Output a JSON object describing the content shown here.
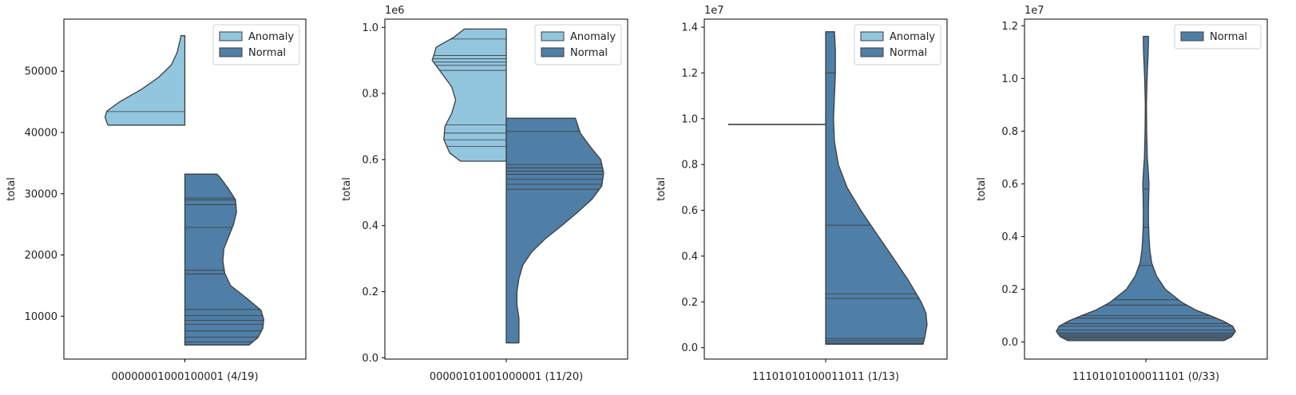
{
  "colors": {
    "anomaly": "#92c6df",
    "normal": "#4f7fa6",
    "edge": "#3d3d3d",
    "quartile_line": "#3a3a3a"
  },
  "chart_data": [
    {
      "type": "violin",
      "split": true,
      "category": "00000001000100001 (4/19)",
      "ylabel": "total",
      "exponent_label": "",
      "yticks": [
        10000,
        20000,
        30000,
        40000,
        50000
      ],
      "ytick_labels": [
        "10000",
        "20000",
        "30000",
        "40000",
        "50000"
      ],
      "ylim": [
        3000,
        58500
      ],
      "legend": {
        "position": "upper right",
        "entries": [
          "Anomaly",
          "Normal"
        ]
      },
      "series": [
        {
          "name": "Anomaly",
          "side": "left",
          "profile": [
            [
              41200,
              0.79
            ],
            [
              41600,
              0.8
            ],
            [
              42500,
              0.82
            ],
            [
              43500,
              0.8
            ],
            [
              45000,
              0.67
            ],
            [
              47000,
              0.45
            ],
            [
              49000,
              0.27
            ],
            [
              51000,
              0.14
            ],
            [
              53000,
              0.08
            ],
            [
              55000,
              0.05
            ],
            [
              55800,
              0.04
            ]
          ],
          "lines": [
            43400
          ]
        },
        {
          "name": "Normal",
          "side": "right",
          "profile": [
            [
              5300,
              0.66
            ],
            [
              6500,
              0.75
            ],
            [
              8000,
              0.8
            ],
            [
              9500,
              0.81
            ],
            [
              11000,
              0.78
            ],
            [
              13000,
              0.63
            ],
            [
              15000,
              0.47
            ],
            [
              17000,
              0.41
            ],
            [
              19000,
              0.39
            ],
            [
              21000,
              0.4
            ],
            [
              23000,
              0.45
            ],
            [
              25000,
              0.5
            ],
            [
              27000,
              0.53
            ],
            [
              29000,
              0.52
            ],
            [
              31000,
              0.44
            ],
            [
              32500,
              0.37
            ],
            [
              33200,
              0.33
            ]
          ],
          "lines": [
            5800,
            6600,
            7600,
            8700,
            9300,
            10100,
            11100,
            16900,
            17500,
            24500,
            28200,
            29000,
            29300
          ]
        }
      ]
    },
    {
      "type": "violin",
      "split": true,
      "category": "00000101001000001 (11/20)",
      "ylabel": "total",
      "exponent_label": "1e6",
      "yticks": [
        0.0,
        0.2,
        0.4,
        0.6,
        0.8,
        1.0
      ],
      "ytick_labels": [
        "0.0",
        "0.2",
        "0.4",
        "0.6",
        "0.8",
        "1.0"
      ],
      "ylim": [
        -0.004,
        1.025
      ],
      "legend": {
        "position": "upper right",
        "entries": [
          "Anomaly",
          "Normal"
        ]
      },
      "series": [
        {
          "name": "Anomaly",
          "side": "left",
          "profile": [
            [
              0.595,
              0.47
            ],
            [
              0.62,
              0.58
            ],
            [
              0.66,
              0.64
            ],
            [
              0.7,
              0.63
            ],
            [
              0.74,
              0.56
            ],
            [
              0.78,
              0.52
            ],
            [
              0.82,
              0.56
            ],
            [
              0.86,
              0.66
            ],
            [
              0.9,
              0.76
            ],
            [
              0.94,
              0.72
            ],
            [
              0.97,
              0.54
            ],
            [
              0.995,
              0.43
            ]
          ],
          "lines": [
            0.64,
            0.66,
            0.68,
            0.705,
            0.87,
            0.885,
            0.895,
            0.905,
            0.915,
            0.965
          ]
        },
        {
          "name": "Normal",
          "side": "right",
          "profile": [
            [
              0.045,
              0.13
            ],
            [
              0.08,
              0.13
            ],
            [
              0.12,
              0.13
            ],
            [
              0.16,
              0.11
            ],
            [
              0.2,
              0.11
            ],
            [
              0.24,
              0.13
            ],
            [
              0.28,
              0.17
            ],
            [
              0.32,
              0.26
            ],
            [
              0.36,
              0.4
            ],
            [
              0.4,
              0.57
            ],
            [
              0.44,
              0.73
            ],
            [
              0.48,
              0.88
            ],
            [
              0.52,
              0.98
            ],
            [
              0.56,
              1.0
            ],
            [
              0.6,
              0.97
            ],
            [
              0.64,
              0.86
            ],
            [
              0.68,
              0.76
            ],
            [
              0.725,
              0.71
            ]
          ],
          "lines": [
            0.51,
            0.525,
            0.54,
            0.555,
            0.565,
            0.575,
            0.585,
            0.685
          ]
        }
      ]
    },
    {
      "type": "violin",
      "split": true,
      "category": "11101010100011011 (1/13)",
      "ylabel": "total",
      "exponent_label": "1e7",
      "yticks": [
        0.0,
        0.2,
        0.4,
        0.6,
        0.8,
        1.0,
        1.2,
        1.4
      ],
      "ytick_labels": [
        "0.0",
        "0.2",
        "0.4",
        "0.6",
        "0.8",
        "1.0",
        "1.2",
        "1.4"
      ],
      "ylim": [
        -0.05,
        1.435
      ],
      "legend": {
        "position": "upper right",
        "entries": [
          "Anomaly",
          "Normal"
        ]
      },
      "series": [
        {
          "name": "Anomaly",
          "side": "left",
          "profile": [],
          "single_value": 0.975,
          "lines": [
            0.975
          ]
        },
        {
          "name": "Normal",
          "side": "right",
          "profile": [
            [
              0.015,
              1.0
            ],
            [
              0.05,
              1.02
            ],
            [
              0.1,
              1.04
            ],
            [
              0.15,
              1.03
            ],
            [
              0.2,
              0.98
            ],
            [
              0.3,
              0.84
            ],
            [
              0.4,
              0.68
            ],
            [
              0.5,
              0.52
            ],
            [
              0.6,
              0.36
            ],
            [
              0.7,
              0.22
            ],
            [
              0.8,
              0.13
            ],
            [
              0.9,
              0.09
            ],
            [
              1.0,
              0.08
            ],
            [
              1.1,
              0.09
            ],
            [
              1.2,
              0.1
            ],
            [
              1.3,
              0.1
            ],
            [
              1.38,
              0.09
            ]
          ],
          "lines": [
            0.02,
            0.03,
            0.04,
            0.215,
            0.235,
            0.535,
            1.2
          ]
        }
      ]
    },
    {
      "type": "violin",
      "split": false,
      "category": "11101010100011101 (0/33)",
      "ylabel": "total",
      "exponent_label": "1e7",
      "yticks": [
        0.0,
        0.2,
        0.4,
        0.6,
        0.8,
        1.0,
        1.2
      ],
      "ytick_labels": [
        "0.0",
        "0.2",
        "0.4",
        "0.6",
        "0.8",
        "1.0",
        "1.2"
      ],
      "ylim": [
        -0.065,
        1.225
      ],
      "legend": {
        "position": "upper right",
        "entries": [
          "Normal"
        ]
      },
      "series": [
        {
          "name": "Normal",
          "side": "both",
          "profile": [
            [
              0.005,
              0.8
            ],
            [
              0.02,
              0.88
            ],
            [
              0.04,
              0.92
            ],
            [
              0.06,
              0.89
            ],
            [
              0.08,
              0.79
            ],
            [
              0.1,
              0.66
            ],
            [
              0.12,
              0.52
            ],
            [
              0.15,
              0.37
            ],
            [
              0.2,
              0.2
            ],
            [
              0.25,
              0.11
            ],
            [
              0.3,
              0.06
            ],
            [
              0.35,
              0.04
            ],
            [
              0.4,
              0.032
            ],
            [
              0.45,
              0.027
            ],
            [
              0.5,
              0.026
            ],
            [
              0.55,
              0.029
            ],
            [
              0.6,
              0.032
            ],
            [
              0.65,
              0.025
            ],
            [
              0.7,
              0.015
            ],
            [
              0.8,
              0.008
            ],
            [
              0.9,
              0.006
            ],
            [
              1.0,
              0.012
            ],
            [
              1.05,
              0.018
            ],
            [
              1.1,
              0.024
            ],
            [
              1.14,
              0.026
            ],
            [
              1.16,
              0.026
            ]
          ],
          "lines": [
            0.01,
            0.015,
            0.02,
            0.025,
            0.03,
            0.035,
            0.045,
            0.06,
            0.07,
            0.09,
            0.1,
            0.14,
            0.16,
            0.29,
            0.435,
            0.58
          ]
        }
      ]
    }
  ]
}
